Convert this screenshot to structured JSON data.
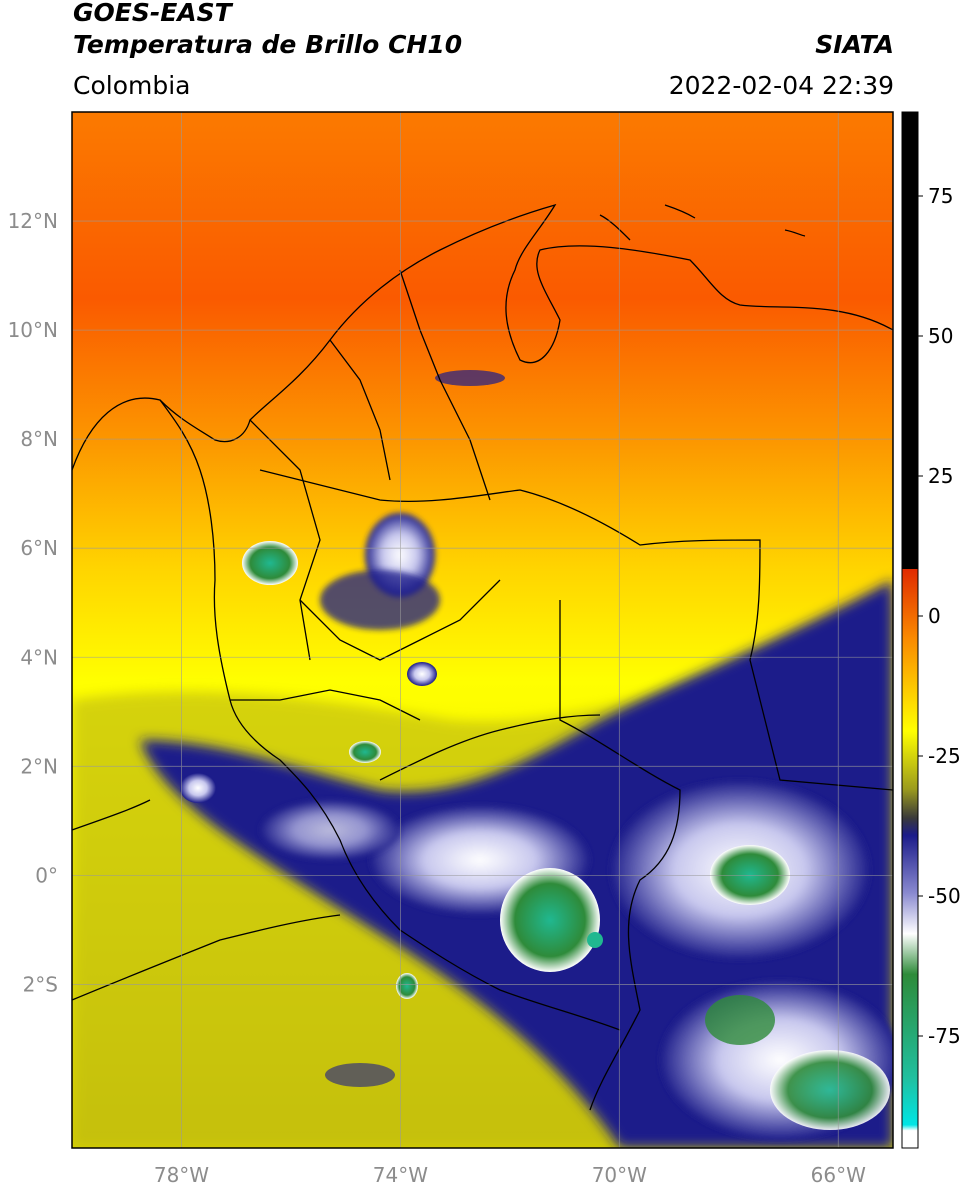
{
  "header": {
    "title_line1": "GOES-EAST",
    "title_line2": "Temperatura de Brillo CH10",
    "brand": "SIATA",
    "region": "Colombia",
    "datetime": "2022-02-04 22:39"
  },
  "map": {
    "lon_range": [
      -80,
      -65
    ],
    "lat_range": [
      -5,
      14
    ],
    "lat_ticks": [
      {
        "value": 12,
        "label": "12°N"
      },
      {
        "value": 10,
        "label": "10°N"
      },
      {
        "value": 8,
        "label": "8°N"
      },
      {
        "value": 6,
        "label": "6°N"
      },
      {
        "value": 4,
        "label": "4°N"
      },
      {
        "value": 2,
        "label": "2°N"
      },
      {
        "value": 0,
        "label": "0°"
      },
      {
        "value": -2,
        "label": "2°S"
      }
    ],
    "lon_ticks": [
      {
        "value": -78,
        "label": "78°W"
      },
      {
        "value": -74,
        "label": "74°W"
      },
      {
        "value": -70,
        "label": "70°W"
      },
      {
        "value": -66,
        "label": "66°W"
      }
    ],
    "gridlines": true
  },
  "colorbar": {
    "range": [
      -95,
      90
    ],
    "ticks": [
      {
        "value": 75,
        "label": "75"
      },
      {
        "value": 50,
        "label": "50"
      },
      {
        "value": 25,
        "label": "25"
      },
      {
        "value": 0,
        "label": "0"
      },
      {
        "value": -25,
        "label": "-25"
      },
      {
        "value": -50,
        "label": "-50"
      },
      {
        "value": -75,
        "label": "-75"
      }
    ],
    "colors": {
      "black": "#000000",
      "red": "#e02a00",
      "orange": "#fa8a00",
      "yellow": "#ffff00",
      "olive": "#9b9b1e",
      "navy": "#1c1c8a",
      "white": "#ffffff",
      "green": "#2e8b3a",
      "teal": "#20c0a0",
      "cyan": "#00e5e5"
    }
  }
}
